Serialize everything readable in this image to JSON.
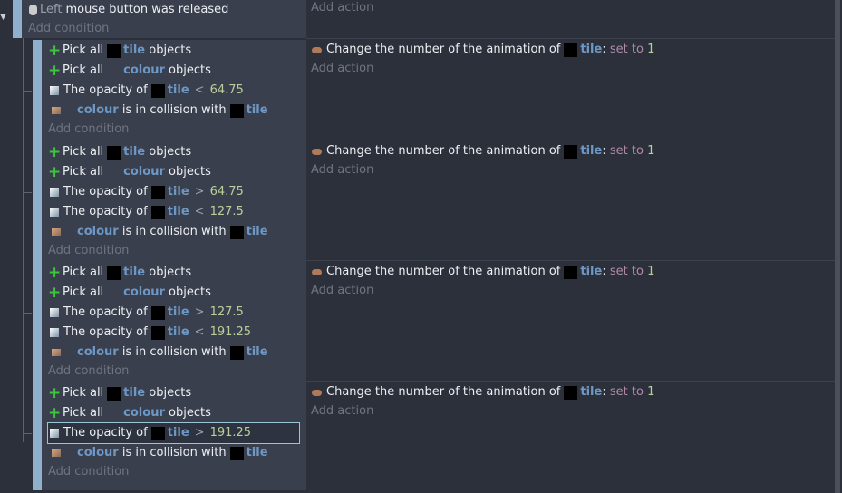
{
  "top_event": {
    "condition": {
      "icon": "mouse-icon",
      "button": "Left",
      "text": "mouse button was released"
    },
    "add_condition": "Add condition",
    "add_action": "Add action"
  },
  "sub_events": [
    {
      "conditions": [
        {
          "type": "pick",
          "pre": "Pick all",
          "obj": "tile",
          "post": "objects"
        },
        {
          "type": "pick",
          "pre": "Pick all",
          "obj": "colour",
          "post": "objects"
        },
        {
          "type": "opacity",
          "pre": "The opacity of",
          "obj": "tile",
          "op": "<",
          "value": "64.75"
        },
        {
          "type": "collision",
          "obj": "colour",
          "mid": "is in collision with",
          "obj2": "tile"
        }
      ],
      "action": {
        "pre": "Change the number of the animation of",
        "obj": "tile",
        "setto": "set to",
        "value": "1"
      }
    },
    {
      "conditions": [
        {
          "type": "pick",
          "pre": "Pick all",
          "obj": "tile",
          "post": "objects"
        },
        {
          "type": "pick",
          "pre": "Pick all",
          "obj": "colour",
          "post": "objects"
        },
        {
          "type": "opacity",
          "pre": "The opacity of",
          "obj": "tile",
          "op": ">",
          "value": "64.75"
        },
        {
          "type": "opacity",
          "pre": "The opacity of",
          "obj": "tile",
          "op": "<",
          "value": "127.5"
        },
        {
          "type": "collision",
          "obj": "colour",
          "mid": "is in collision with",
          "obj2": "tile"
        }
      ],
      "action": {
        "pre": "Change the number of the animation of",
        "obj": "tile",
        "setto": "set to",
        "value": "1"
      }
    },
    {
      "conditions": [
        {
          "type": "pick",
          "pre": "Pick all",
          "obj": "tile",
          "post": "objects"
        },
        {
          "type": "pick",
          "pre": "Pick all",
          "obj": "colour",
          "post": "objects"
        },
        {
          "type": "opacity",
          "pre": "The opacity of",
          "obj": "tile",
          "op": ">",
          "value": "127.5"
        },
        {
          "type": "opacity",
          "pre": "The opacity of",
          "obj": "tile",
          "op": "<",
          "value": "191.25"
        },
        {
          "type": "collision",
          "obj": "colour",
          "mid": "is in collision with",
          "obj2": "tile"
        }
      ],
      "action": {
        "pre": "Change the number of the animation of",
        "obj": "tile",
        "setto": "set to",
        "value": "1"
      }
    },
    {
      "conditions": [
        {
          "type": "pick",
          "pre": "Pick all",
          "obj": "tile",
          "post": "objects"
        },
        {
          "type": "pick",
          "pre": "Pick all",
          "obj": "colour",
          "post": "objects"
        },
        {
          "type": "opacity",
          "pre": "The opacity of",
          "obj": "tile",
          "op": ">",
          "value": "191.25",
          "selected": true
        },
        {
          "type": "collision",
          "obj": "colour",
          "mid": "is in collision with",
          "obj2": "tile"
        }
      ],
      "action": {
        "pre": "Change the number of the animation of",
        "obj": "tile",
        "setto": "set to",
        "value": "1"
      }
    }
  ],
  "labels": {
    "add_condition": "Add condition",
    "add_action": "Add action"
  }
}
